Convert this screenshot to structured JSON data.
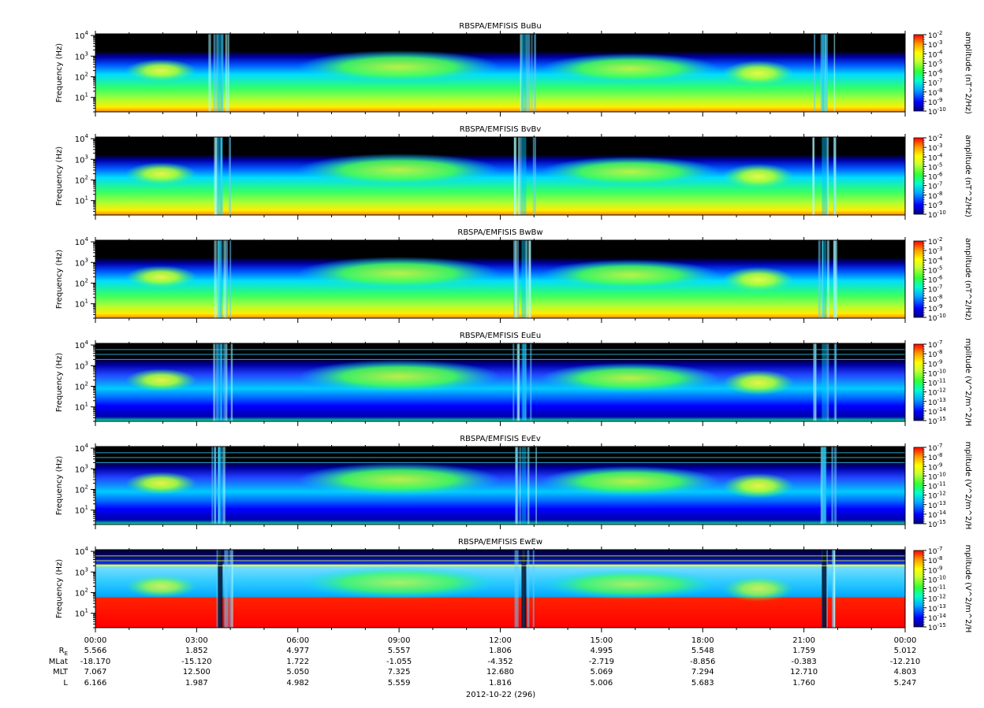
{
  "figure": {
    "date_label": "2012-10-22 (296)",
    "ephemeris": {
      "labels": [
        "R",
        "MLat",
        "MLT",
        "L"
      ],
      "r_subscript": "E",
      "rows": [
        {
          "name": "RE",
          "values": [
            "5.566",
            "1.852",
            "4.977",
            "5.557",
            "1.806",
            "4.995",
            "5.548",
            "1.759",
            "5.012"
          ]
        },
        {
          "name": "MLat",
          "values": [
            "-18.170",
            "-15.120",
            "1.722",
            "-1.055",
            "-4.352",
            "-2.719",
            "-8.856",
            "-0.383",
            "-12.210"
          ]
        },
        {
          "name": "MLT",
          "values": [
            "7.067",
            "12.500",
            "5.050",
            "7.325",
            "12.680",
            "5.069",
            "7.294",
            "12.710",
            "4.803"
          ]
        },
        {
          "name": "L",
          "values": [
            "6.166",
            "1.987",
            "4.982",
            "5.559",
            "1.816",
            "5.006",
            "5.683",
            "1.760",
            "5.247"
          ]
        }
      ]
    }
  },
  "colors": {
    "background": "#000000",
    "palette": [
      "#00007f",
      "#0000ff",
      "#00aaff",
      "#00ffcc",
      "#66ff66",
      "#ccff33",
      "#ffff00",
      "#ff9900",
      "#ff0000"
    ]
  },
  "chart_data": [
    {
      "type": "heatmap",
      "title": "RBSPA/EMFISIS  BuBu",
      "ylabel": "Frequency (Hz)",
      "yscale": "log",
      "ylim": [
        2,
        12000
      ],
      "ytick_values": [
        10,
        100,
        1000,
        10000
      ],
      "ytick_labels": [
        "10",
        "10",
        "10",
        "10"
      ],
      "ytick_exponents": [
        "1",
        "2",
        "3",
        "4"
      ],
      "xlim_hours": [
        0,
        24
      ],
      "xtick_labels": [
        "00:00",
        "03:00",
        "06:00",
        "09:00",
        "12:00",
        "15:00",
        "18:00",
        "21:00",
        "00:00"
      ],
      "colorbar": {
        "label": "amplitude (nT^2/Hz)",
        "scale": "log",
        "tick_base": "10",
        "tick_exponents": [
          "-2",
          "-3",
          "-4",
          "-5",
          "-6",
          "-7",
          "-8",
          "-9",
          "-10"
        ]
      }
    },
    {
      "type": "heatmap",
      "title": "RBSPA/EMFISIS  BvBv",
      "ylabel": "Frequency (Hz)",
      "yscale": "log",
      "ylim": [
        2,
        12000
      ],
      "ytick_values": [
        10,
        100,
        1000,
        10000
      ],
      "ytick_labels": [
        "10",
        "10",
        "10",
        "10"
      ],
      "ytick_exponents": [
        "1",
        "2",
        "3",
        "4"
      ],
      "xlim_hours": [
        0,
        24
      ],
      "colorbar": {
        "label": "amplitude (nT^2/Hz)",
        "scale": "log",
        "tick_base": "10",
        "tick_exponents": [
          "-2",
          "-3",
          "-4",
          "-5",
          "-6",
          "-7",
          "-8",
          "-9",
          "-10"
        ]
      }
    },
    {
      "type": "heatmap",
      "title": "RBSPA/EMFISIS  BwBw",
      "ylabel": "Frequency (Hz)",
      "yscale": "log",
      "ylim": [
        2,
        12000
      ],
      "ytick_values": [
        10,
        100,
        1000,
        10000
      ],
      "ytick_labels": [
        "10",
        "10",
        "10",
        "10"
      ],
      "ytick_exponents": [
        "1",
        "2",
        "3",
        "4"
      ],
      "xlim_hours": [
        0,
        24
      ],
      "colorbar": {
        "label": "amplitude (nT^2/Hz)",
        "scale": "log",
        "tick_base": "10",
        "tick_exponents": [
          "-2",
          "-3",
          "-4",
          "-5",
          "-6",
          "-7",
          "-8",
          "-9",
          "-10"
        ]
      }
    },
    {
      "type": "heatmap",
      "title": "RBSPA/EMFISIS  EuEu",
      "ylabel": "Frequency (Hz)",
      "yscale": "log",
      "ylim": [
        2,
        12000
      ],
      "ytick_values": [
        10,
        100,
        1000,
        10000
      ],
      "ytick_labels": [
        "10",
        "10",
        "10",
        "10"
      ],
      "ytick_exponents": [
        "1",
        "2",
        "3",
        "4"
      ],
      "xlim_hours": [
        0,
        24
      ],
      "colorbar": {
        "label": "mplitude (V^2/m^2/H",
        "scale": "log",
        "tick_base": "10",
        "tick_exponents": [
          "-7",
          "-8",
          "-9",
          "-10",
          "-11",
          "-12",
          "-13",
          "-14",
          "-15"
        ]
      }
    },
    {
      "type": "heatmap",
      "title": "RBSPA/EMFISIS  EvEv",
      "ylabel": "Frequency (Hz)",
      "yscale": "log",
      "ylim": [
        2,
        12000
      ],
      "ytick_values": [
        10,
        100,
        1000,
        10000
      ],
      "ytick_labels": [
        "10",
        "10",
        "10",
        "10"
      ],
      "ytick_exponents": [
        "1",
        "2",
        "3",
        "4"
      ],
      "xlim_hours": [
        0,
        24
      ],
      "colorbar": {
        "label": "mplitude (V^2/m^2/H",
        "scale": "log",
        "tick_base": "10",
        "tick_exponents": [
          "-7",
          "-8",
          "-9",
          "-10",
          "-11",
          "-12",
          "-13",
          "-14",
          "-15"
        ]
      }
    },
    {
      "type": "heatmap",
      "title": "RBSPA/EMFISIS  EwEw",
      "ylabel": "Frequency (Hz)",
      "yscale": "log",
      "ylim": [
        2,
        12000
      ],
      "ytick_values": [
        10,
        100,
        1000,
        10000
      ],
      "ytick_labels": [
        "10",
        "10",
        "10",
        "10"
      ],
      "ytick_exponents": [
        "1",
        "2",
        "3",
        "4"
      ],
      "xlim_hours": [
        0,
        24
      ],
      "colorbar": {
        "label": "mplitude (V^2/m^2/H",
        "scale": "log",
        "tick_base": "10",
        "tick_exponents": [
          "-7",
          "-8",
          "-9",
          "-10",
          "-11",
          "-12",
          "-13",
          "-14",
          "-15"
        ]
      }
    }
  ]
}
